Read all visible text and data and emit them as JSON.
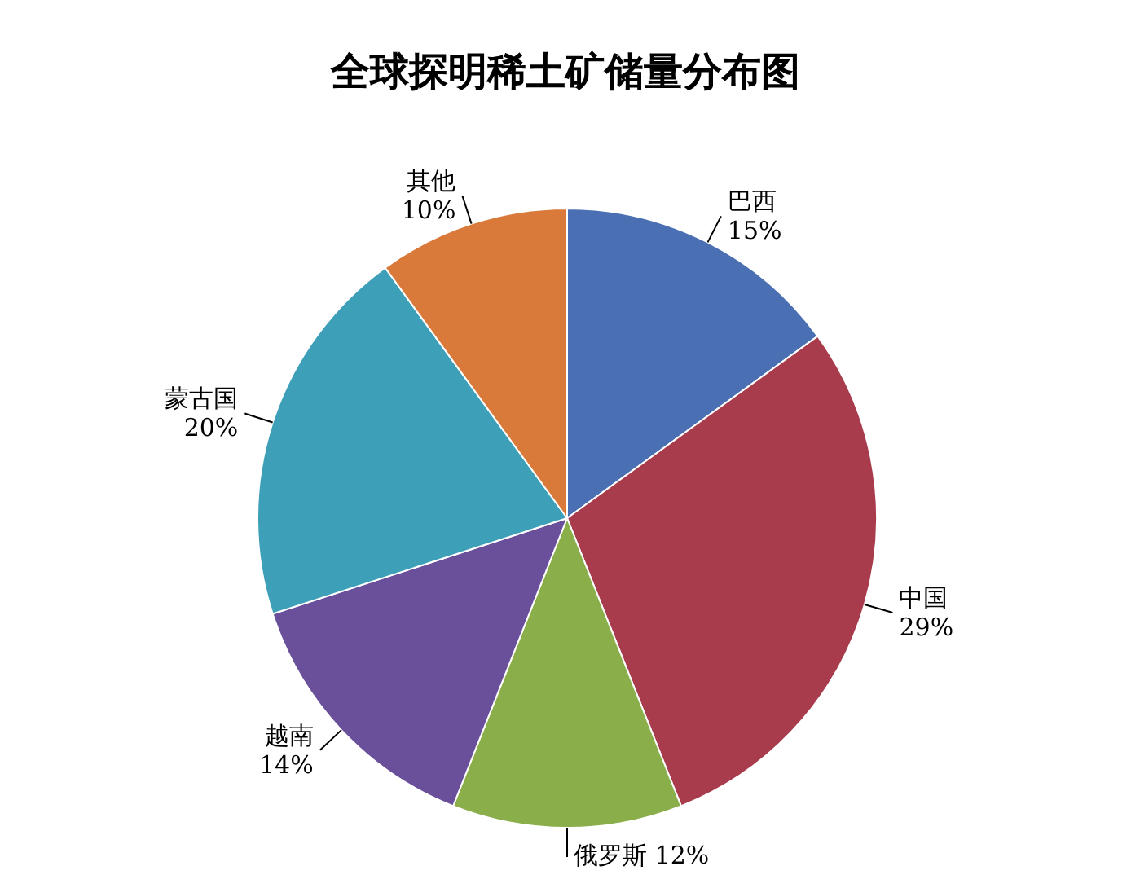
{
  "chart_data": {
    "type": "pie",
    "title": "全球探明稀土矿储量分布图",
    "categories": [
      "巴西",
      "中国",
      "俄罗斯",
      "越南",
      "蒙古国",
      "其他"
    ],
    "values": [
      15,
      29,
      12,
      14,
      20,
      10
    ],
    "value_labels": [
      "15%",
      "29%",
      "12%",
      "14%",
      "20%",
      "10%"
    ],
    "colors": [
      "#4a70b3",
      "#a93c4c",
      "#8aae4a",
      "#6a4f9b",
      "#3e9fb8",
      "#d9793a"
    ]
  }
}
